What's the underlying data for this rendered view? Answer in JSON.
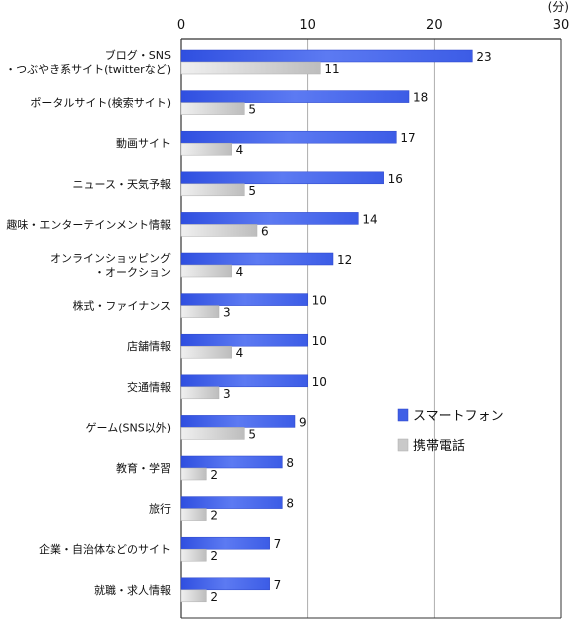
{
  "chart_data": {
    "type": "bar",
    "orientation": "horizontal",
    "unit": "(分)",
    "xlim": [
      0,
      30
    ],
    "xticks": [
      0,
      10,
      20,
      30
    ],
    "grid": true,
    "legend_position": "right",
    "categories": [
      [
        "ブログ・SNS",
        "・つぶやき系サイト(twitterなど)"
      ],
      [
        "ポータルサイト(検索サイト)"
      ],
      [
        "動画サイト"
      ],
      [
        "ニュース・天気予報"
      ],
      [
        "趣味・エンターテインメント情報"
      ],
      [
        "オンラインショッピング",
        "・オークション"
      ],
      [
        "株式・ファイナンス"
      ],
      [
        "店舗情報"
      ],
      [
        "交通情報"
      ],
      [
        "ゲーム(SNS以外)"
      ],
      [
        "教育・学習"
      ],
      [
        "旅行"
      ],
      [
        "企業・自治体などのサイト"
      ],
      [
        "就職・求人情報"
      ]
    ],
    "series": [
      {
        "name": "スマートフォン",
        "color": "#4a6cf0",
        "values": [
          23,
          18,
          17,
          16,
          14,
          12,
          10,
          10,
          10,
          9,
          8,
          8,
          7,
          7
        ]
      },
      {
        "name": "携帯電話",
        "color": "#c8c8c8",
        "values": [
          11,
          5,
          4,
          5,
          6,
          4,
          3,
          4,
          3,
          5,
          2,
          2,
          2,
          2
        ]
      }
    ]
  }
}
